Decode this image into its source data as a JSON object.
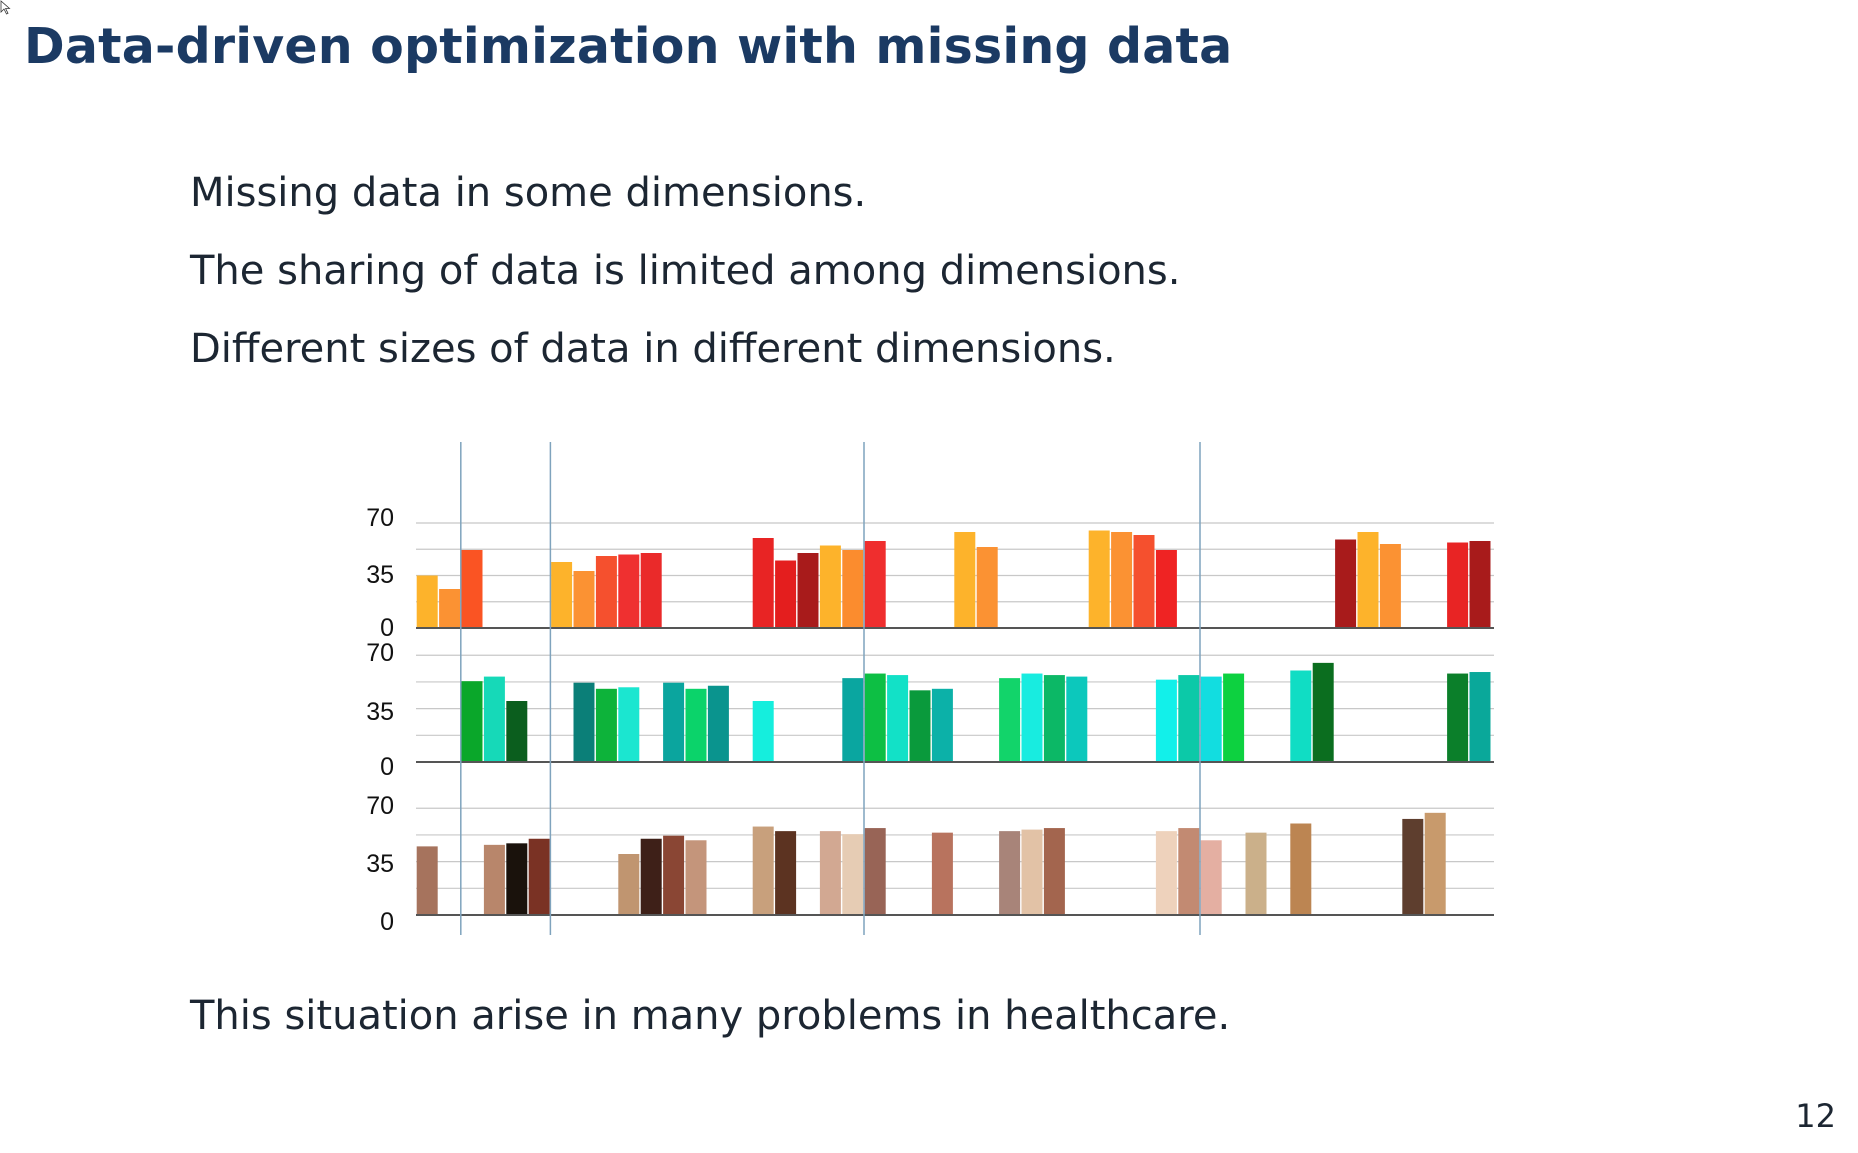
{
  "slide": {
    "title": "Data-driven optimization with missing data",
    "bullets": [
      "Missing data in some dimensions.",
      "The sharing of data is limited among dimensions.",
      "Different sizes of data in different dimensions."
    ],
    "footer": "This situation arise in many problems in healthcare.",
    "page_number": "12"
  },
  "chart_data": {
    "type": "bar",
    "layout": "three stacked panels sharing x slots",
    "grid": true,
    "panels": [
      {
        "name": "",
        "ylim": [
          0,
          80
        ],
        "yticks": [
          0,
          35,
          70
        ],
        "bars": [
          {
            "slot": 0,
            "value": 35,
            "color": "#FDB32B"
          },
          {
            "slot": 1,
            "value": 26,
            "color": "#FB9233"
          },
          {
            "slot": 2,
            "value": 52,
            "color": "#FA5423"
          },
          {
            "slot": 6,
            "value": 44,
            "color": "#FDB32B"
          },
          {
            "slot": 7,
            "value": 38,
            "color": "#FB9233"
          },
          {
            "slot": 8,
            "value": 48,
            "color": "#F5502E"
          },
          {
            "slot": 9,
            "value": 49,
            "color": "#EF3030"
          },
          {
            "slot": 10,
            "value": 50,
            "color": "#EA2A2A"
          },
          {
            "slot": 15,
            "value": 60,
            "color": "#E82424"
          },
          {
            "slot": 16,
            "value": 45,
            "color": "#E41E1E"
          },
          {
            "slot": 17,
            "value": 50,
            "color": "#A81B1B"
          },
          {
            "slot": 18,
            "value": 55,
            "color": "#FDB32B"
          },
          {
            "slot": 19,
            "value": 52,
            "color": "#FB8C2E"
          },
          {
            "slot": 20,
            "value": 58,
            "color": "#EF2E2E"
          },
          {
            "slot": 24,
            "value": 64,
            "color": "#FDB32B"
          },
          {
            "slot": 25,
            "value": 54,
            "color": "#FB9233"
          },
          {
            "slot": 30,
            "value": 65,
            "color": "#FDB32B"
          },
          {
            "slot": 31,
            "value": 64,
            "color": "#FB9233"
          },
          {
            "slot": 32,
            "value": 62,
            "color": "#F5502E"
          },
          {
            "slot": 33,
            "value": 52,
            "color": "#EF2323"
          },
          {
            "slot": 41,
            "value": 59,
            "color": "#A81B1B"
          },
          {
            "slot": 42,
            "value": 64,
            "color": "#FDB32B"
          },
          {
            "slot": 43,
            "value": 56,
            "color": "#FB9233"
          },
          {
            "slot": 46,
            "value": 57,
            "color": "#E82424"
          },
          {
            "slot": 47,
            "value": 58,
            "color": "#A81B1B"
          }
        ]
      },
      {
        "name": "",
        "ylim": [
          0,
          80
        ],
        "yticks": [
          0,
          35,
          70
        ],
        "bars": [
          {
            "slot": 2,
            "value": 53,
            "color": "#0AA72A"
          },
          {
            "slot": 3,
            "value": 56,
            "color": "#16D9B8"
          },
          {
            "slot": 4,
            "value": 40,
            "color": "#0B5E1E"
          },
          {
            "slot": 7,
            "value": 52,
            "color": "#0B7F78"
          },
          {
            "slot": 8,
            "value": 48,
            "color": "#0DB33A"
          },
          {
            "slot": 9,
            "value": 49,
            "color": "#1BE6D0"
          },
          {
            "slot": 11,
            "value": 52,
            "color": "#0BA59E"
          },
          {
            "slot": 12,
            "value": 48,
            "color": "#0BD36A"
          },
          {
            "slot": 13,
            "value": 50,
            "color": "#0A948E"
          },
          {
            "slot": 15,
            "value": 40,
            "color": "#15EEDD"
          },
          {
            "slot": 19,
            "value": 55,
            "color": "#0AA6A0"
          },
          {
            "slot": 20,
            "value": 58,
            "color": "#0DBF44"
          },
          {
            "slot": 21,
            "value": 57,
            "color": "#12E1C7"
          },
          {
            "slot": 22,
            "value": 47,
            "color": "#0A9A3C"
          },
          {
            "slot": 23,
            "value": 48,
            "color": "#0CB1A8"
          },
          {
            "slot": 26,
            "value": 55,
            "color": "#12D46A"
          },
          {
            "slot": 27,
            "value": 58,
            "color": "#18ECE0"
          },
          {
            "slot": 28,
            "value": 57,
            "color": "#0CB866"
          },
          {
            "slot": 29,
            "value": 56,
            "color": "#0CC8BC"
          },
          {
            "slot": 33,
            "value": 54,
            "color": "#12F0EA"
          },
          {
            "slot": 34,
            "value": 57,
            "color": "#0CC9A8"
          },
          {
            "slot": 35,
            "value": 56,
            "color": "#12DDE0"
          },
          {
            "slot": 36,
            "value": 58,
            "color": "#0DD140"
          },
          {
            "slot": 39,
            "value": 60,
            "color": "#10DDC4"
          },
          {
            "slot": 40,
            "value": 65,
            "color": "#0B6E1F"
          },
          {
            "slot": 46,
            "value": 58,
            "color": "#0B7F2A"
          },
          {
            "slot": 47,
            "value": 59,
            "color": "#0AA89A"
          }
        ]
      },
      {
        "name": "",
        "ylim": [
          0,
          80
        ],
        "yticks": [
          0,
          35,
          70
        ],
        "bars": [
          {
            "slot": 0,
            "value": 45,
            "color": "#A6735D"
          },
          {
            "slot": 3,
            "value": 46,
            "color": "#B8866B"
          },
          {
            "slot": 4,
            "value": 47,
            "color": "#1A120C"
          },
          {
            "slot": 5,
            "value": 50,
            "color": "#7A3224"
          },
          {
            "slot": 9,
            "value": 40,
            "color": "#C09570"
          },
          {
            "slot": 10,
            "value": 50,
            "color": "#3E2018"
          },
          {
            "slot": 11,
            "value": 52,
            "color": "#8A4634"
          },
          {
            "slot": 12,
            "value": 49,
            "color": "#C4957B"
          },
          {
            "slot": 15,
            "value": 58,
            "color": "#C8A07C"
          },
          {
            "slot": 16,
            "value": 55,
            "color": "#5C3321"
          },
          {
            "slot": 18,
            "value": 55,
            "color": "#D2A892"
          },
          {
            "slot": 19,
            "value": 53,
            "color": "#E6CCB4"
          },
          {
            "slot": 20,
            "value": 57,
            "color": "#986456"
          },
          {
            "slot": 23,
            "value": 54,
            "color": "#B8735E"
          },
          {
            "slot": 26,
            "value": 55,
            "color": "#A88479"
          },
          {
            "slot": 27,
            "value": 56,
            "color": "#E2C2A6"
          },
          {
            "slot": 28,
            "value": 57,
            "color": "#A3654E"
          },
          {
            "slot": 33,
            "value": 55,
            "color": "#EED2BC"
          },
          {
            "slot": 34,
            "value": 57,
            "color": "#C28A72"
          },
          {
            "slot": 35,
            "value": 49,
            "color": "#E4AFA2"
          },
          {
            "slot": 37,
            "value": 54,
            "color": "#CBB08A"
          },
          {
            "slot": 39,
            "value": 60,
            "color": "#BC8552"
          },
          {
            "slot": 44,
            "value": 63,
            "color": "#5E3E2E"
          },
          {
            "slot": 45,
            "value": 67,
            "color": "#C89A6C"
          }
        ]
      }
    ],
    "separator_slot_boundaries": [
      2,
      6,
      20,
      35
    ]
  }
}
